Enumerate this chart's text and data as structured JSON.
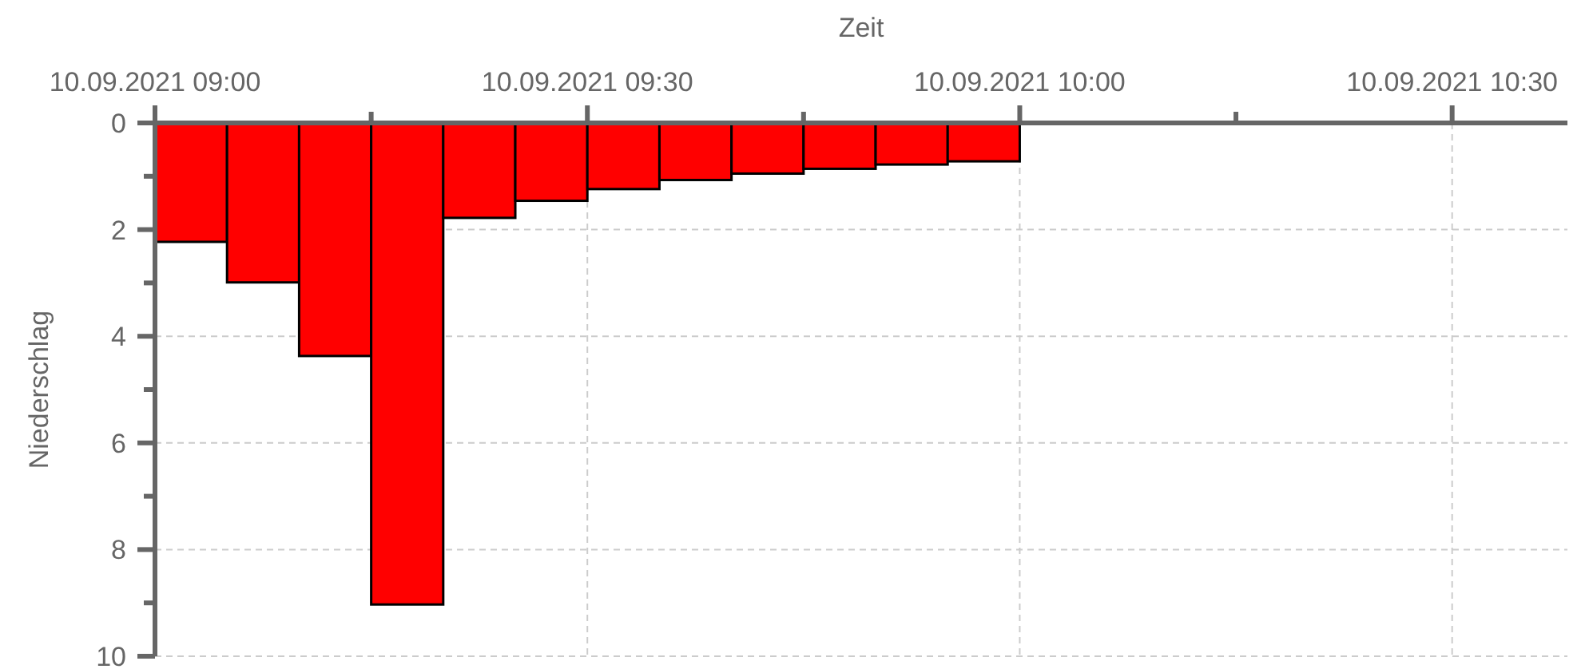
{
  "chart_data": {
    "type": "histogram",
    "xlabel": "Zeit",
    "ylabel": "Niederschlag",
    "bins": [
      "2021-09-10T09:00",
      "2021-09-10T09:05",
      "2021-09-10T09:10",
      "2021-09-10T09:15",
      "2021-09-10T09:20",
      "2021-09-10T09:25",
      "2021-09-10T09:30",
      "2021-09-10T09:35",
      "2021-09-10T09:40",
      "2021-09-10T09:45",
      "2021-09-10T09:50",
      "2021-09-10T09:55",
      "2021-09-10T10:00",
      "2021-09-10T10:05",
      "2021-09-10T10:10",
      "2021-09-10T10:15",
      "2021-09-10T10:20",
      "2021-09-10T10:25",
      "2021-09-10T10:30",
      "2021-09-10T10:35",
      "2021-09-10T10:40"
    ],
    "values": [
      2.23,
      2.99,
      4.37,
      9.03,
      1.78,
      1.46,
      1.24,
      1.07,
      0.95,
      0.86,
      0.78,
      0.72,
      0,
      null,
      null,
      null,
      null,
      null,
      null,
      0
    ],
    "color": "#ff0000",
    "xlim": [
      "2021-09-10T09:00",
      "2021-09-10T10:38"
    ],
    "xticks": [
      {
        "value": "2021-09-10T09:00",
        "label": "10.09.2021 09:00"
      },
      {
        "value": "2021-09-10T09:15",
        "label": null
      },
      {
        "value": "2021-09-10T09:30",
        "label": "10.09.2021 09:30"
      },
      {
        "value": "2021-09-10T09:45",
        "label": null
      },
      {
        "value": "2021-09-10T10:00",
        "label": "10.09.2021 10:00"
      },
      {
        "value": "2021-09-10T10:15",
        "label": null
      },
      {
        "value": "2021-09-10T10:30",
        "label": "10.09.2021 10:30"
      }
    ],
    "ylim": [
      10,
      0
    ],
    "yticks": [
      0,
      {
        "value": 1,
        "label": null
      },
      2,
      {
        "value": 3,
        "label": null
      },
      4,
      {
        "value": 5,
        "label": null
      },
      6,
      {
        "value": 7,
        "label": null
      },
      8,
      {
        "value": 9,
        "label": null
      },
      10
    ],
    "grid": true
  }
}
